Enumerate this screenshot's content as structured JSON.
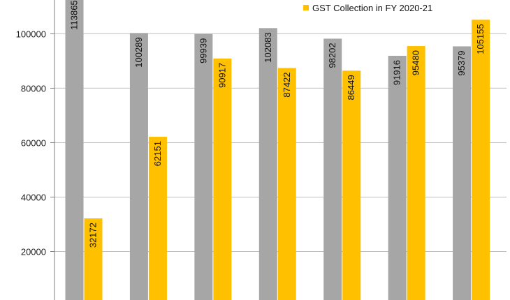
{
  "chart_data": {
    "type": "bar",
    "title": "",
    "xlabel": "",
    "ylabel": "",
    "categories": [
      "",
      "",
      "",
      "",
      "",
      "",
      ""
    ],
    "series": [
      {
        "name": "",
        "color": "#a6a6a6",
        "values": [
          113865,
          100289,
          99939,
          102083,
          98202,
          91916,
          95379
        ]
      },
      {
        "name": "GST Collection in FY 2020-21",
        "color": "#ffc000",
        "values": [
          32172,
          62151,
          90917,
          87422,
          86449,
          95480,
          105155
        ]
      }
    ],
    "ylim": [
      0,
      110000
    ],
    "yticks": [
      20000,
      40000,
      60000,
      80000,
      100000
    ],
    "grid": true,
    "data_labels": "inside-rotated",
    "legend": "top-right"
  }
}
